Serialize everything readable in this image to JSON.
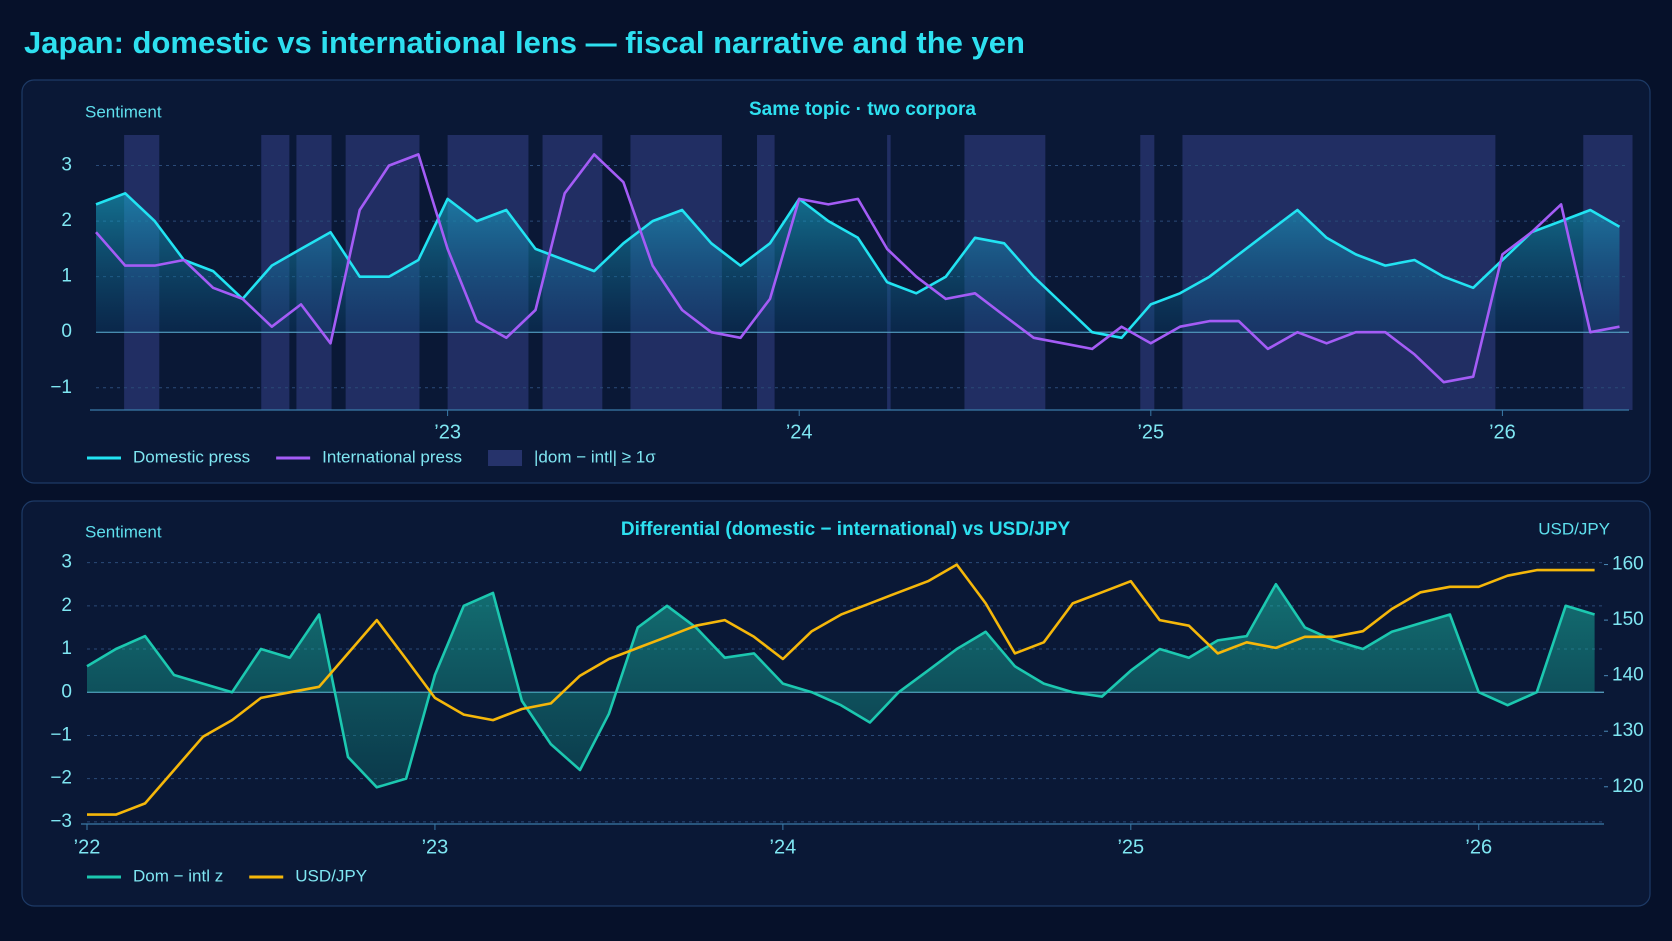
{
  "title": "Japan: domestic vs international lens — fiscal narrative and the yen",
  "chart_data": [
    {
      "type": "line",
      "title": "Same topic · two corpora",
      "y_label": "Sentiment",
      "x": [
        2022,
        2022.083,
        2022.167,
        2022.25,
        2022.333,
        2022.417,
        2022.5,
        2022.583,
        2022.667,
        2022.75,
        2022.833,
        2022.917,
        2023,
        2023.083,
        2023.167,
        2023.25,
        2023.333,
        2023.417,
        2023.5,
        2023.583,
        2023.667,
        2023.75,
        2023.833,
        2023.917,
        2024,
        2024.083,
        2024.167,
        2024.25,
        2024.333,
        2024.417,
        2024.5,
        2024.583,
        2024.667,
        2024.75,
        2024.833,
        2024.917,
        2025,
        2025.083,
        2025.167,
        2025.25,
        2025.333,
        2025.417,
        2025.5,
        2025.583,
        2025.667,
        2025.75,
        2025.833,
        2025.917,
        2026,
        2026.083,
        2026.167,
        2026.25,
        2026.333
      ],
      "xlim": [
        2022,
        2026.36
      ],
      "xticks": [
        {
          "value": 2023,
          "label": "’23"
        },
        {
          "value": 2024,
          "label": "’24"
        },
        {
          "value": 2025,
          "label": "’25"
        },
        {
          "value": 2026,
          "label": "’26"
        }
      ],
      "ylim": [
        -1.4,
        3.55
      ],
      "yticks": [
        {
          "value": -1,
          "label": "−1"
        },
        0,
        1,
        2,
        3
      ],
      "grid": true,
      "series": [
        {
          "name": "Domestic press",
          "color": "#22e3f2",
          "values": [
            2.3,
            2.5,
            2.0,
            1.3,
            1.1,
            0.6,
            1.2,
            1.5,
            1.8,
            1.0,
            1.0,
            1.3,
            2.4,
            2.0,
            2.2,
            1.5,
            1.3,
            1.1,
            1.6,
            2.0,
            2.2,
            1.6,
            1.2,
            1.6,
            2.4,
            2.0,
            1.7,
            0.9,
            0.7,
            1.0,
            1.7,
            1.6,
            1.0,
            0.5,
            0.0,
            -0.1,
            0.5,
            0.7,
            1.0,
            1.4,
            1.8,
            2.2,
            1.7,
            1.4,
            1.2,
            1.3,
            1.0,
            0.8,
            1.3,
            1.8,
            2.0,
            2.2,
            1.9
          ]
        },
        {
          "name": "International press",
          "color": "#a45cf6",
          "values": [
            1.8,
            1.2,
            1.2,
            1.3,
            0.8,
            0.6,
            0.1,
            0.5,
            -0.2,
            2.2,
            3.0,
            3.2,
            1.5,
            0.2,
            -0.1,
            0.4,
            2.5,
            3.2,
            2.7,
            1.2,
            0.4,
            0.0,
            -0.1,
            0.6,
            2.4,
            2.3,
            2.4,
            1.5,
            1.0,
            0.6,
            0.7,
            0.3,
            -0.1,
            -0.2,
            -0.3,
            0.1,
            -0.2,
            0.1,
            0.2,
            0.2,
            -0.3,
            0.0,
            -0.2,
            0.0,
            0.0,
            -0.4,
            -0.9,
            -0.8,
            1.4,
            1.8,
            2.3,
            0.0,
            0.1
          ]
        }
      ],
      "highlight": {
        "name": "|dom − intl| ≥ 1σ",
        "color": "#26336b",
        "ranges": [
          [
            2022.08,
            2022.18
          ],
          [
            2022.47,
            2022.55
          ],
          [
            2022.57,
            2022.67
          ],
          [
            2022.71,
            2022.92
          ],
          [
            2023.0,
            2023.23
          ],
          [
            2023.27,
            2023.44
          ],
          [
            2023.52,
            2023.78
          ],
          [
            2023.88,
            2023.93
          ],
          [
            2024.25,
            2024.26
          ],
          [
            2024.47,
            2024.7
          ],
          [
            2024.97,
            2025.01
          ],
          [
            2025.09,
            2025.98
          ],
          [
            2026.23,
            2026.37
          ]
        ]
      }
    },
    {
      "type": "line",
      "title": "Differential (domestic − international) vs USD/JPY",
      "y_label": "Sentiment",
      "y2_label": "USD/JPY",
      "x": [
        2022,
        2022.083,
        2022.167,
        2022.25,
        2022.333,
        2022.417,
        2022.5,
        2022.583,
        2022.667,
        2022.75,
        2022.833,
        2022.917,
        2023,
        2023.083,
        2023.167,
        2023.25,
        2023.333,
        2023.417,
        2023.5,
        2023.583,
        2023.667,
        2023.75,
        2023.833,
        2023.917,
        2024,
        2024.083,
        2024.167,
        2024.25,
        2024.333,
        2024.417,
        2024.5,
        2024.583,
        2024.667,
        2024.75,
        2024.833,
        2024.917,
        2025,
        2025.083,
        2025.167,
        2025.25,
        2025.333,
        2025.417,
        2025.5,
        2025.583,
        2025.667,
        2025.75,
        2025.833,
        2025.917,
        2026,
        2026.083,
        2026.167,
        2026.25,
        2026.333
      ],
      "xlim": [
        2022,
        2026.36
      ],
      "xticks": [
        {
          "value": 2022,
          "label": "’22"
        },
        {
          "value": 2023,
          "label": "’23"
        },
        {
          "value": 2024,
          "label": "’24"
        },
        {
          "value": 2025,
          "label": "’25"
        },
        {
          "value": 2026,
          "label": "’26"
        }
      ],
      "ylim": [
        -3.05,
        3.2
      ],
      "yticks": [
        {
          "value": -3,
          "label": "−3"
        },
        {
          "value": -2,
          "label": "−2"
        },
        {
          "value": -1,
          "label": "−1"
        },
        0,
        1,
        2,
        3
      ],
      "y2lim": [
        113.3,
        161.9
      ],
      "y2ticks": [
        120,
        130,
        140,
        150,
        160
      ],
      "grid": true,
      "series": [
        {
          "name": "Dom − intl z",
          "color": "#1cc8b0",
          "fill": true,
          "values": [
            0.6,
            1.0,
            1.3,
            0.4,
            0.2,
            0.0,
            1.0,
            0.8,
            1.8,
            -1.5,
            -2.2,
            -2.0,
            0.4,
            2.0,
            2.3,
            -0.2,
            -1.2,
            -1.8,
            -0.5,
            1.5,
            2.0,
            1.5,
            0.8,
            0.9,
            0.2,
            0.0,
            -0.3,
            -0.7,
            0.0,
            0.5,
            1.0,
            1.4,
            0.6,
            0.2,
            0.0,
            -0.1,
            0.5,
            1.0,
            0.8,
            1.2,
            1.3,
            2.5,
            1.5,
            1.2,
            1.0,
            1.4,
            1.6,
            1.8,
            0.0,
            -0.3,
            0.0,
            2.0,
            1.8
          ]
        },
        {
          "name": "USD/JPY",
          "color": "#f5b70a",
          "axis": "y2",
          "values": [
            115,
            115,
            117,
            123,
            129,
            132,
            136,
            137,
            138,
            144,
            150,
            143,
            136,
            133,
            132,
            134,
            135,
            140,
            143,
            145,
            147,
            149,
            150,
            147,
            143,
            148,
            151,
            153,
            155,
            157,
            160,
            153,
            144,
            146,
            153,
            155,
            157,
            150,
            149,
            144,
            146,
            145,
            147,
            147,
            148,
            152,
            155,
            156,
            156,
            158,
            159,
            159,
            159
          ]
        }
      ]
    }
  ]
}
